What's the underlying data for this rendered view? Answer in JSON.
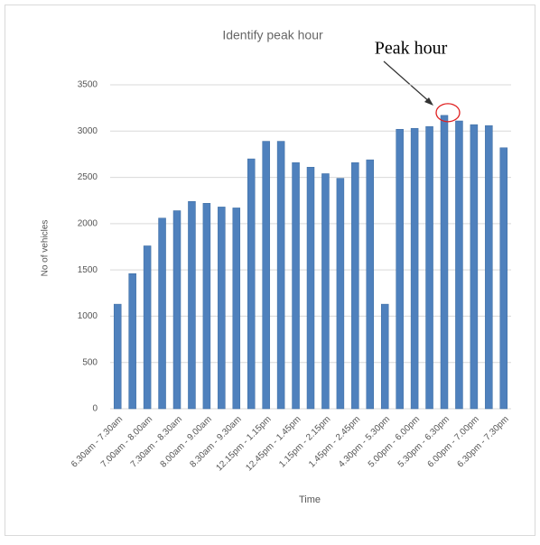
{
  "chart_data": {
    "type": "bar",
    "title": "Identify peak hour",
    "annotation": "Peak hour",
    "x_label": "Time",
    "y_label": "No of vehicles",
    "categories": [
      "6.30am - 7.30am",
      null,
      "7.00am - 8.00am",
      null,
      "7.30am - 8.30am",
      null,
      "8.00am - 9.00am",
      null,
      "8.30am - 9.30am",
      null,
      "12.15pm - 1.15pm",
      null,
      "12.45pm - 1.45pm",
      null,
      "1.15pm - 2.15pm",
      null,
      "1.45pm - 2.45pm",
      null,
      "4.30pm - 5.30pm",
      null,
      "5.00pm - 6.00pm",
      null,
      "5.30pm - 6.30pm",
      null,
      "6.00pm - 7.00pm",
      null,
      "6.30pm - 7.30pm"
    ],
    "values": [
      1130,
      1460,
      1760,
      2060,
      2140,
      2240,
      2220,
      2180,
      2170,
      2700,
      2890,
      2890,
      2660,
      2610,
      2540,
      2490,
      2660,
      2690,
      1130,
      3020,
      3030,
      3050,
      3170,
      3110,
      3070,
      3060,
      2820
    ],
    "color": "#4f81bd",
    "ylim": [
      0,
      3500
    ],
    "yticks": [
      0,
      500,
      1000,
      1500,
      2000,
      2500,
      3000,
      3500
    ],
    "grid": true
  }
}
